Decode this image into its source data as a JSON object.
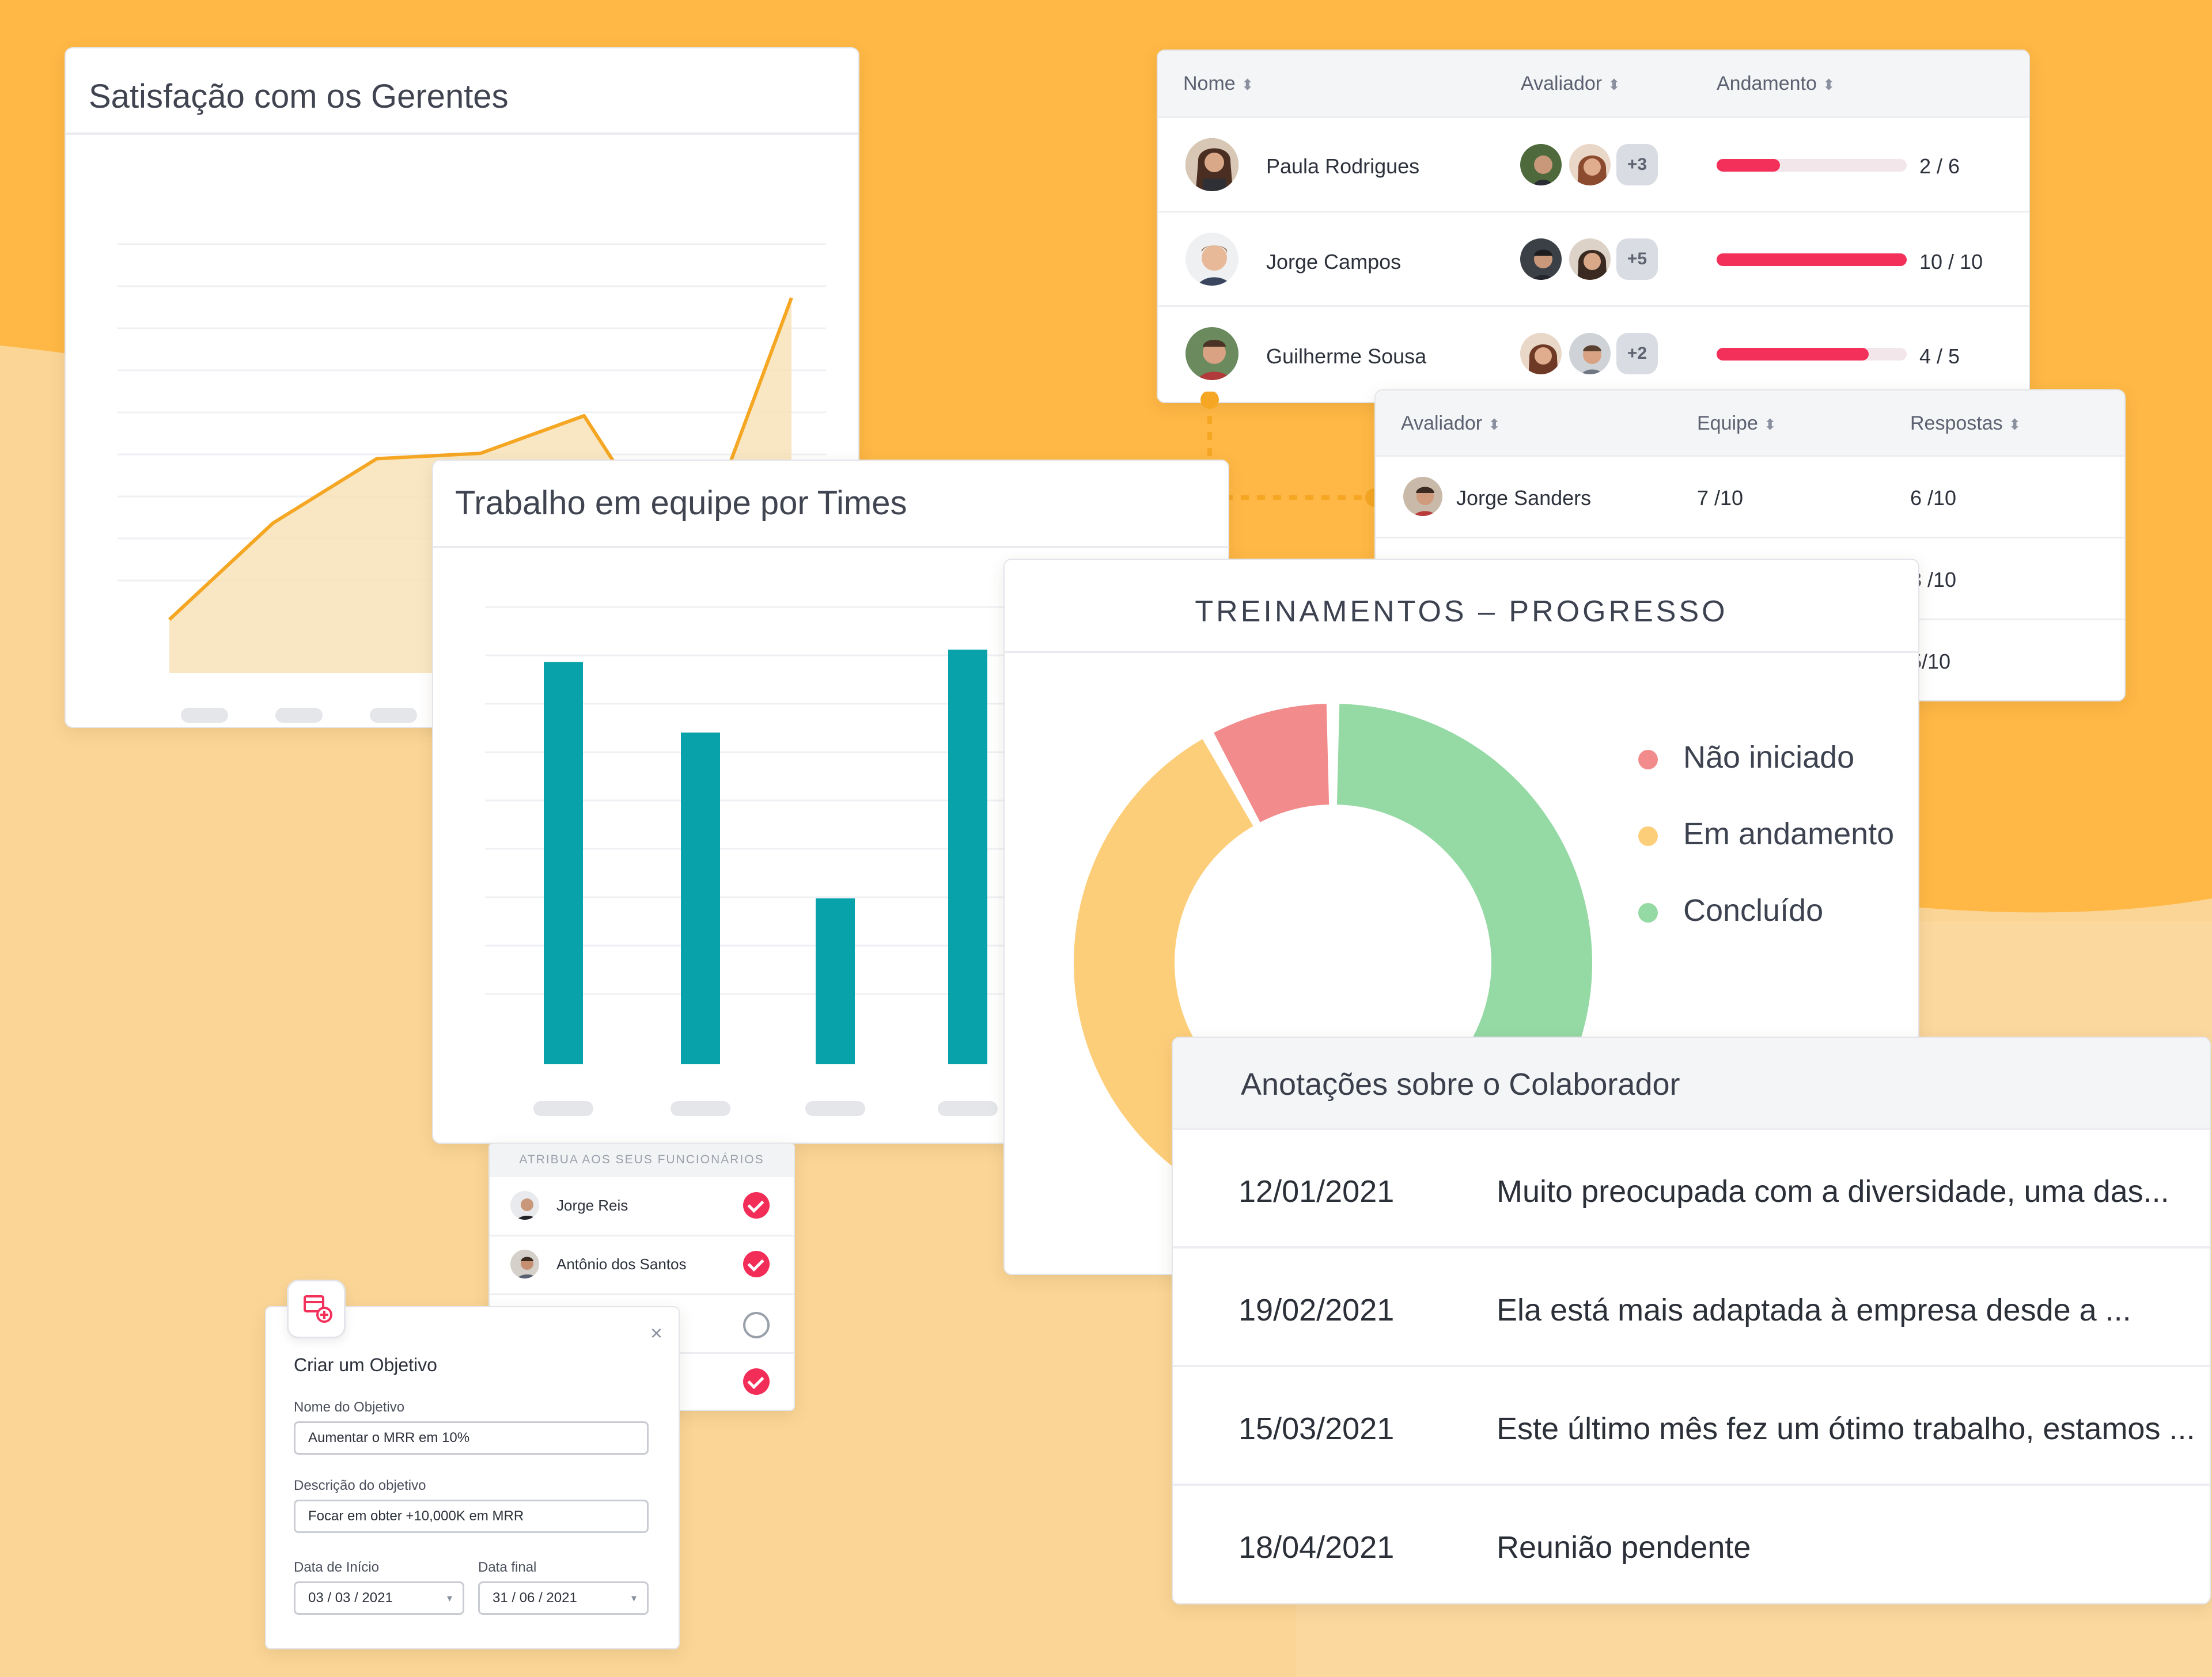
{
  "colors": {
    "background_top": "#ffb845",
    "background_bottom": "#fad596",
    "accent_red": "#f3305a",
    "teal": "#08a3aa",
    "line_orange": "#f5a623",
    "not_started": "#f28b8b",
    "in_progress": "#fdce7a",
    "completed": "#95d9a4"
  },
  "satisfaction_card": {
    "title": "Satisfação com os Gerentes",
    "chart_data": {
      "type": "area",
      "values": [
        10,
        28,
        40,
        41,
        48,
        18,
        70
      ]
    }
  },
  "teamwork_card": {
    "title": "Trabalho em equipe por Times",
    "chart_data": {
      "type": "bar",
      "values": [
        97,
        80,
        40,
        100
      ]
    }
  },
  "training_card": {
    "title": "TREINAMENTOS – PROGRESSO",
    "chart_data": {
      "type": "pie",
      "labels": [
        "Não iniciado",
        "Em andamento",
        "Concluído"
      ],
      "values": [
        8,
        42,
        50
      ],
      "colors": [
        "#f28b8b",
        "#fdce7a",
        "#95d9a4"
      ]
    }
  },
  "evaluation_table": {
    "headers": [
      "Nome",
      "Avaliador",
      "Andamento"
    ],
    "rows": [
      {
        "name": "Paula Rodrigues",
        "extra": "+3",
        "progress": 0.3333,
        "progress_label": "2 / 6"
      },
      {
        "name": "Jorge Campos",
        "extra": "+5",
        "progress": 1.0,
        "progress_label": "10 / 10"
      },
      {
        "name": "Guilherme Sousa",
        "extra": "+2",
        "progress": 0.8,
        "progress_label": "4 / 5"
      }
    ]
  },
  "evaluator_table": {
    "headers": [
      "Avaliador",
      "Equipe",
      "Respostas"
    ],
    "rows": [
      {
        "name": "Jorge Sanders",
        "team": "7 /10",
        "answers": "6 /10"
      },
      {
        "answers": "3 /10"
      },
      {
        "answers": "5/10"
      }
    ]
  },
  "assign_card": {
    "header": "ATRIBUA AOS SEUS FUNCIONÁRIOS",
    "items": [
      {
        "name": "Jorge Reis",
        "checked": true
      },
      {
        "name": "Antônio dos Santos",
        "checked": true
      },
      {
        "name": "",
        "checked": false
      },
      {
        "name": "",
        "checked": true
      }
    ]
  },
  "objective_form": {
    "title": "Criar um Objetivo",
    "name_label": "Nome do Objetivo",
    "name_value": "Aumentar o MRR em 10%",
    "desc_label": "Descrição do objetivo",
    "desc_value": "Focar em obter +10,000K em MRR",
    "start_label": "Data de Início",
    "start_value": "03 / 03 / 2021",
    "end_label": "Data final",
    "end_value": "31 / 06 / 2021"
  },
  "notes_card": {
    "title": "Anotações sobre o Colaborador",
    "notes": [
      {
        "date": "12/01/2021",
        "text": "Muito preocupada com a diversidade, uma das..."
      },
      {
        "date": "19/02/2021",
        "text": "Ela está mais adaptada à empresa desde a ..."
      },
      {
        "date": "15/03/2021",
        "text": "Este último mês fez um ótimo trabalho, estamos ..."
      },
      {
        "date": "18/04/2021",
        "text": "Reunião pendente"
      }
    ]
  }
}
